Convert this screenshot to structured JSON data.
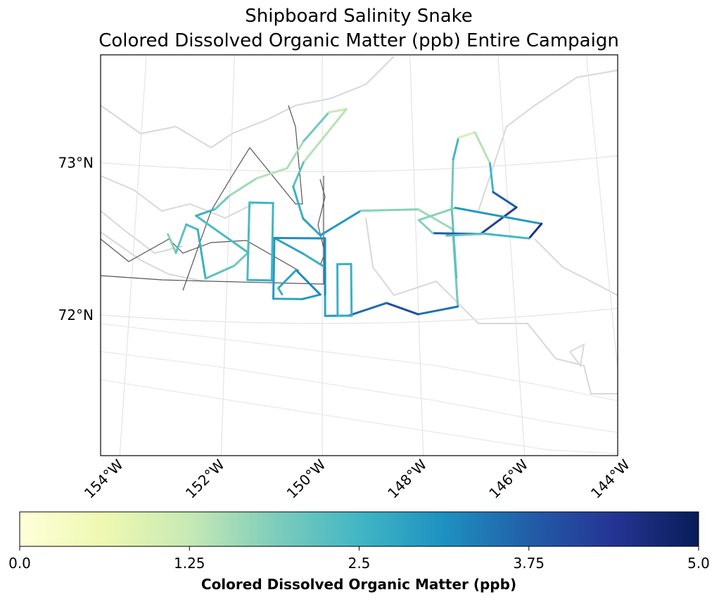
{
  "chart_data": {
    "type": "map",
    "title": "Shipboard Salinity Snake",
    "subtitle": "Colored Dissolved Organic Matter (ppb) Entire Campaign",
    "lat_ticks": [
      {
        "value": 73,
        "label": "73°N"
      },
      {
        "value": 72,
        "label": "72°N"
      }
    ],
    "lon_ticks": [
      {
        "value": -154,
        "label": "154°W"
      },
      {
        "value": -152,
        "label": "152°W"
      },
      {
        "value": -150,
        "label": "150°W"
      },
      {
        "value": -148,
        "label": "148°W"
      },
      {
        "value": -146,
        "label": "146°W"
      },
      {
        "value": -144,
        "label": "144°W"
      }
    ],
    "grid": true,
    "track": {
      "lon": [
        -153.29,
        -153.1,
        -152.91,
        -152.66,
        -152.45,
        -151.86,
        -151.57,
        -152.71,
        -152.3,
        -152.01,
        -151.43,
        -150.77,
        -150.41,
        -149.85,
        -149.46,
        -150.41,
        -150.63,
        -150.41,
        -150.04,
        -149.17,
        -147.93,
        -147.21,
        -147.18,
        -148.01,
        -148.66,
        -149.46,
        -149.94,
        -149.94,
        -150.41,
        -151.02,
        -151.02,
        -150.41,
        -150.04,
        -150.55,
        -150.92,
        -150.84,
        null,
        -147.18,
        -147.21,
        -147.13,
        -146.99,
        -146.62,
        -146.33,
        -146.3,
        -145.82,
        -146.62,
        -147.64,
        -147.93,
        -147.13,
        -145.31,
        -145.6,
        -146.54,
        -147.35,
        null,
        -151.57,
        -151.06,
        -151.06,
        -151.57,
        -151.57,
        null,
        -149.68,
        -149.39,
        -149.39,
        -149.68,
        -149.68,
        null,
        -151.02,
        -149.94,
        -149.94
      ],
      "lat": [
        72.56,
        72.44,
        72.63,
        72.6,
        72.28,
        72.37,
        72.46,
        72.69,
        72.74,
        72.83,
        72.95,
        73.02,
        73.2,
        73.39,
        73.41,
        73.06,
        72.9,
        72.69,
        72.58,
        72.74,
        72.74,
        72.6,
        72.09,
        72.05,
        72.13,
        72.05,
        72.05,
        72.37,
        72.46,
        72.56,
        72.16,
        72.16,
        72.19,
        72.35,
        72.23,
        72.19,
        null,
        72.28,
        72.74,
        73.06,
        73.2,
        73.23,
        73.02,
        72.83,
        72.72,
        72.56,
        72.58,
        72.67,
        72.74,
        72.6,
        72.51,
        72.56,
        72.56,
        null,
        72.79,
        72.79,
        72.28,
        72.28,
        72.79,
        null,
        72.39,
        72.39,
        72.05,
        72.05,
        72.39,
        null,
        72.56,
        72.56,
        72.19
      ],
      "values": [
        1.8,
        2.2,
        2.4,
        2.6,
        2.2,
        2.0,
        2.4,
        2.6,
        2.0,
        1.6,
        1.4,
        1.5,
        2.0,
        1.2,
        1.4,
        2.2,
        2.6,
        2.8,
        3.0,
        1.8,
        1.6,
        2.0,
        3.5,
        4.0,
        3.6,
        3.0,
        2.8,
        2.6,
        2.8,
        3.0,
        2.8,
        3.0,
        3.2,
        2.8,
        2.6,
        2.4,
        null,
        2.2,
        2.0,
        2.5,
        1.0,
        1.4,
        2.5,
        3.8,
        4.2,
        3.8,
        1.8,
        1.8,
        3.0,
        4.5,
        2.5,
        2.2,
        2.5,
        null,
        2.5,
        2.5,
        2.6,
        2.4,
        2.5,
        null,
        2.6,
        2.6,
        2.7,
        2.6,
        2.6,
        null,
        3.2,
        3.2,
        3.2
      ]
    },
    "colormap": [
      "#ffffd9",
      "#edf8b1",
      "#c7e9b4",
      "#7fcdbb",
      "#41b6c4",
      "#1d91c0",
      "#225ea8",
      "#253494",
      "#081d58"
    ],
    "colorbar": {
      "label": "Colored Dissolved Organic Matter (ppb)",
      "lim": [
        0,
        5
      ],
      "ticks": [
        {
          "value": 0,
          "label": "0.0"
        },
        1.25,
        2.5,
        3.75,
        {
          "value": 5,
          "label": "5.0"
        }
      ]
    }
  }
}
